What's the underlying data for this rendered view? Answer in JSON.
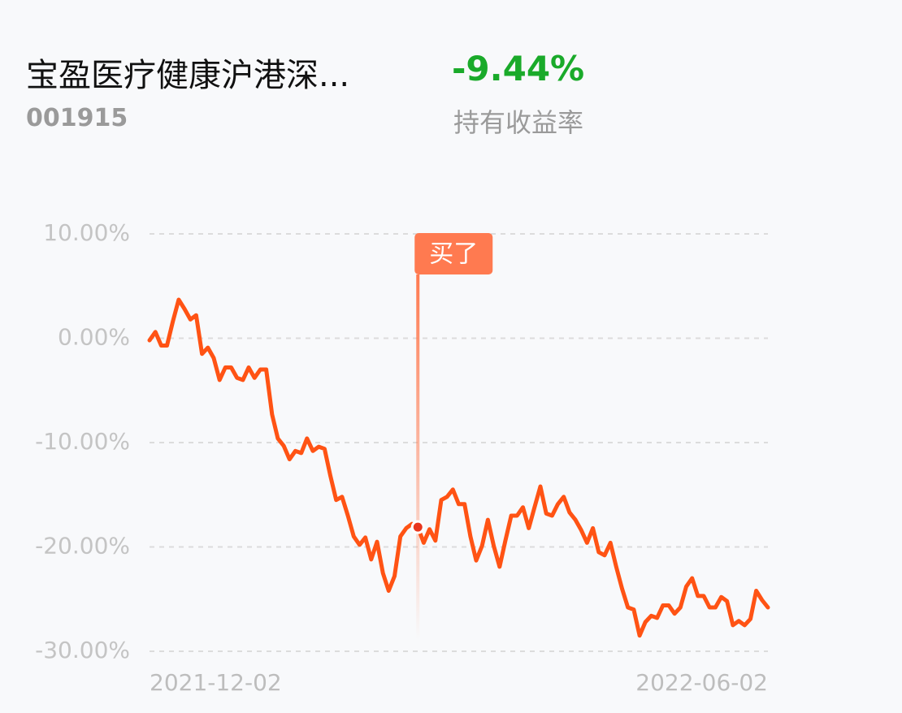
{
  "header": {
    "fund_name": "宝盈医疗健康沪港深...",
    "fund_code": "001915",
    "return": "-9.44%",
    "return_label": "持有收益率"
  },
  "chart_data": {
    "type": "line",
    "color": "#ff5314",
    "categories": [
      "2021-12-02",
      null,
      null,
      null,
      null,
      null,
      null,
      null,
      null,
      null,
      null,
      null,
      null,
      null,
      null,
      null,
      null,
      null,
      null,
      null,
      null,
      null,
      null,
      null,
      null,
      null,
      null,
      null,
      null,
      null,
      null,
      null,
      null,
      null,
      null,
      null,
      null,
      null,
      null,
      null,
      null,
      null,
      null,
      null,
      null,
      null,
      null,
      null,
      null,
      null,
      null,
      null,
      null,
      null,
      null,
      null,
      null,
      null,
      null,
      null,
      null,
      null,
      null,
      null,
      null,
      null,
      null,
      null,
      null,
      null,
      null,
      null,
      null,
      null,
      null,
      null,
      null,
      null,
      null,
      null,
      null,
      null,
      null,
      null,
      null,
      null,
      null,
      null,
      null,
      null,
      null,
      null,
      null,
      null,
      null,
      null,
      null,
      null,
      null,
      null,
      null,
      null,
      null,
      null,
      null,
      null,
      "2022-06-02"
    ],
    "values": [
      -0.2,
      0.6,
      -0.7,
      -0.7,
      1.6,
      3.7,
      2.8,
      1.8,
      2.2,
      -1.5,
      -0.9,
      -1.9,
      -4.0,
      -2.8,
      -2.8,
      -3.8,
      -4.0,
      -2.8,
      -3.8,
      -3.0,
      -3.0,
      -7.3,
      -9.6,
      -10.3,
      -11.6,
      -10.8,
      -11.0,
      -9.6,
      -10.8,
      -10.4,
      -10.6,
      -13.2,
      -15.5,
      -15.2,
      -17.0,
      -19.0,
      -19.8,
      -19.1,
      -21.2,
      -19.5,
      -22.5,
      -24.2,
      -22.8,
      -19.0,
      -18.2,
      -17.8,
      -18.1,
      -19.6,
      -18.3,
      -19.4,
      -15.5,
      -15.2,
      -14.5,
      -15.9,
      -15.9,
      -19.0,
      -21.3,
      -19.9,
      -17.4,
      -19.9,
      -21.9,
      -19.4,
      -17.0,
      -17.0,
      -16.2,
      -18.2,
      -16.2,
      -14.2,
      -16.8,
      -17.0,
      -15.9,
      -15.2,
      -16.7,
      -17.4,
      -18.4,
      -19.6,
      -18.2,
      -20.5,
      -20.8,
      -19.6,
      -21.9,
      -24.0,
      -25.8,
      -26.0,
      -28.5,
      -27.2,
      -26.6,
      -26.8,
      -25.6,
      -25.6,
      -26.4,
      -25.8,
      -23.8,
      -23.0,
      -24.7,
      -24.7,
      -25.8,
      -25.8,
      -24.8,
      -25.2,
      -27.5,
      -27.1,
      -27.5,
      -26.9,
      -24.2,
      -25.1,
      -25.8
    ],
    "ylim": [
      -30,
      10
    ],
    "yticks": [
      {
        "value": 10,
        "label": "10.00%"
      },
      {
        "value": 0,
        "label": "0.00%"
      },
      {
        "value": -10,
        "label": "-10.00%"
      },
      {
        "value": -20,
        "label": "-20.00%"
      },
      {
        "value": -30,
        "label": "-30.00%"
      }
    ],
    "grid": true,
    "annotation": {
      "text": "买了",
      "x_index": 46,
      "color": "#ff7a50"
    }
  }
}
